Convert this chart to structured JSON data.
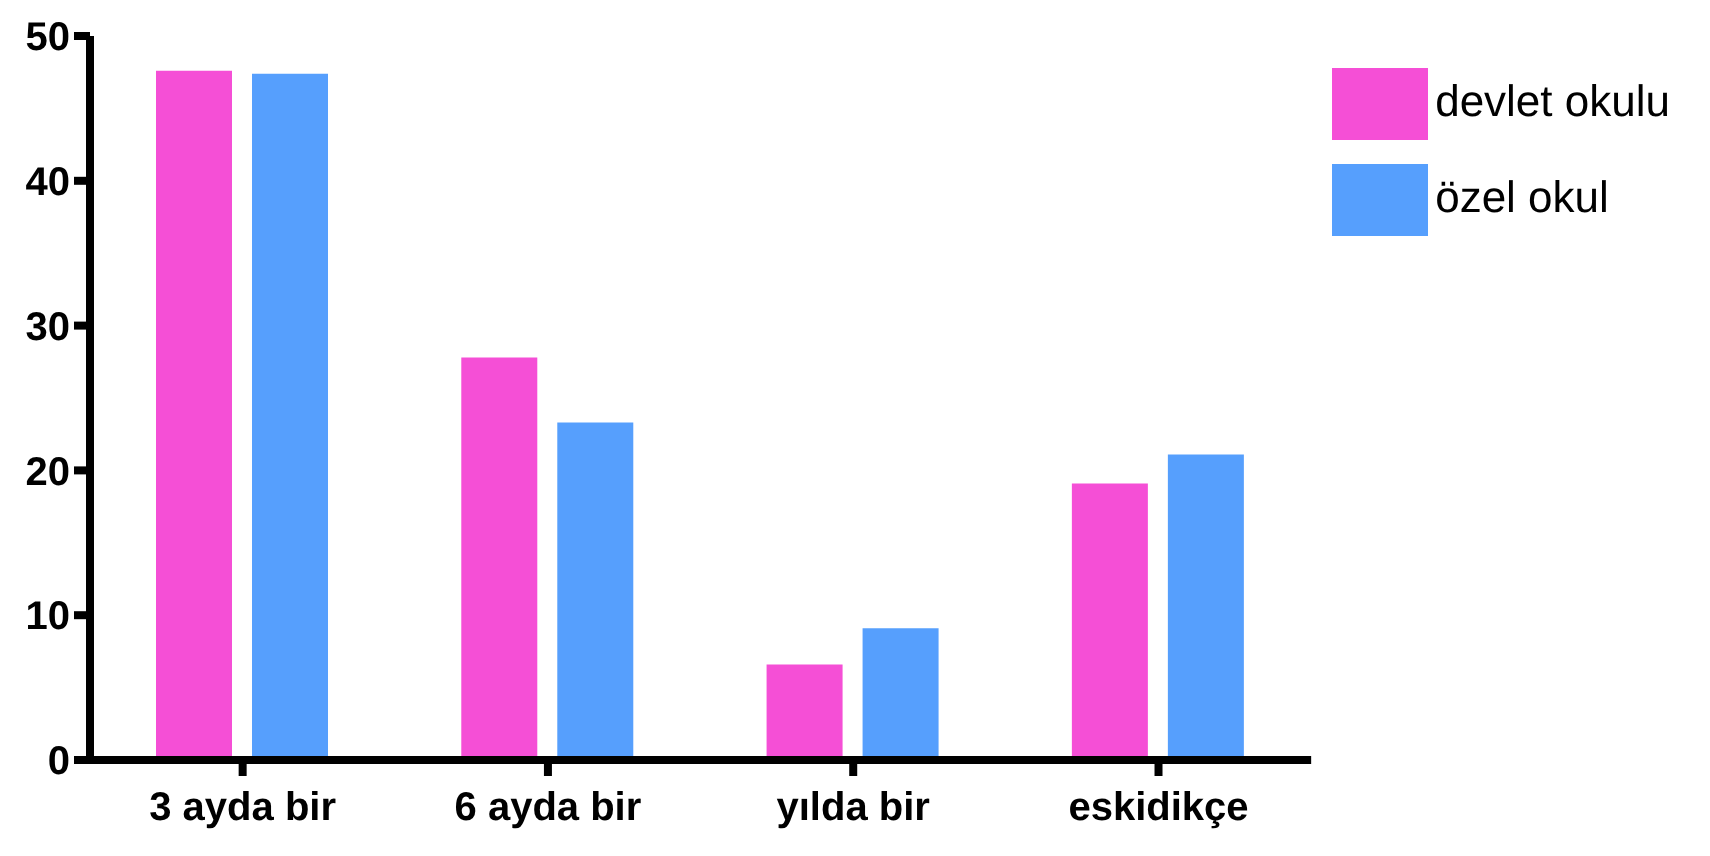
{
  "chart_data": {
    "type": "bar",
    "categories": [
      "3 ayda bir",
      "6 ayda bir",
      "yılda bir",
      "eskidikçe"
    ],
    "series": [
      {
        "name": "devlet okulu",
        "color": "#f54fd6",
        "values": [
          47.6,
          27.8,
          6.6,
          19.1
        ]
      },
      {
        "name": "özel okul",
        "color": "#569ffd",
        "values": [
          47.4,
          23.3,
          9.1,
          21.1
        ]
      }
    ],
    "ylim": [
      0,
      50
    ],
    "yticks": [
      0,
      10,
      20,
      30,
      40,
      50
    ],
    "grid": false,
    "legend": "top right"
  }
}
